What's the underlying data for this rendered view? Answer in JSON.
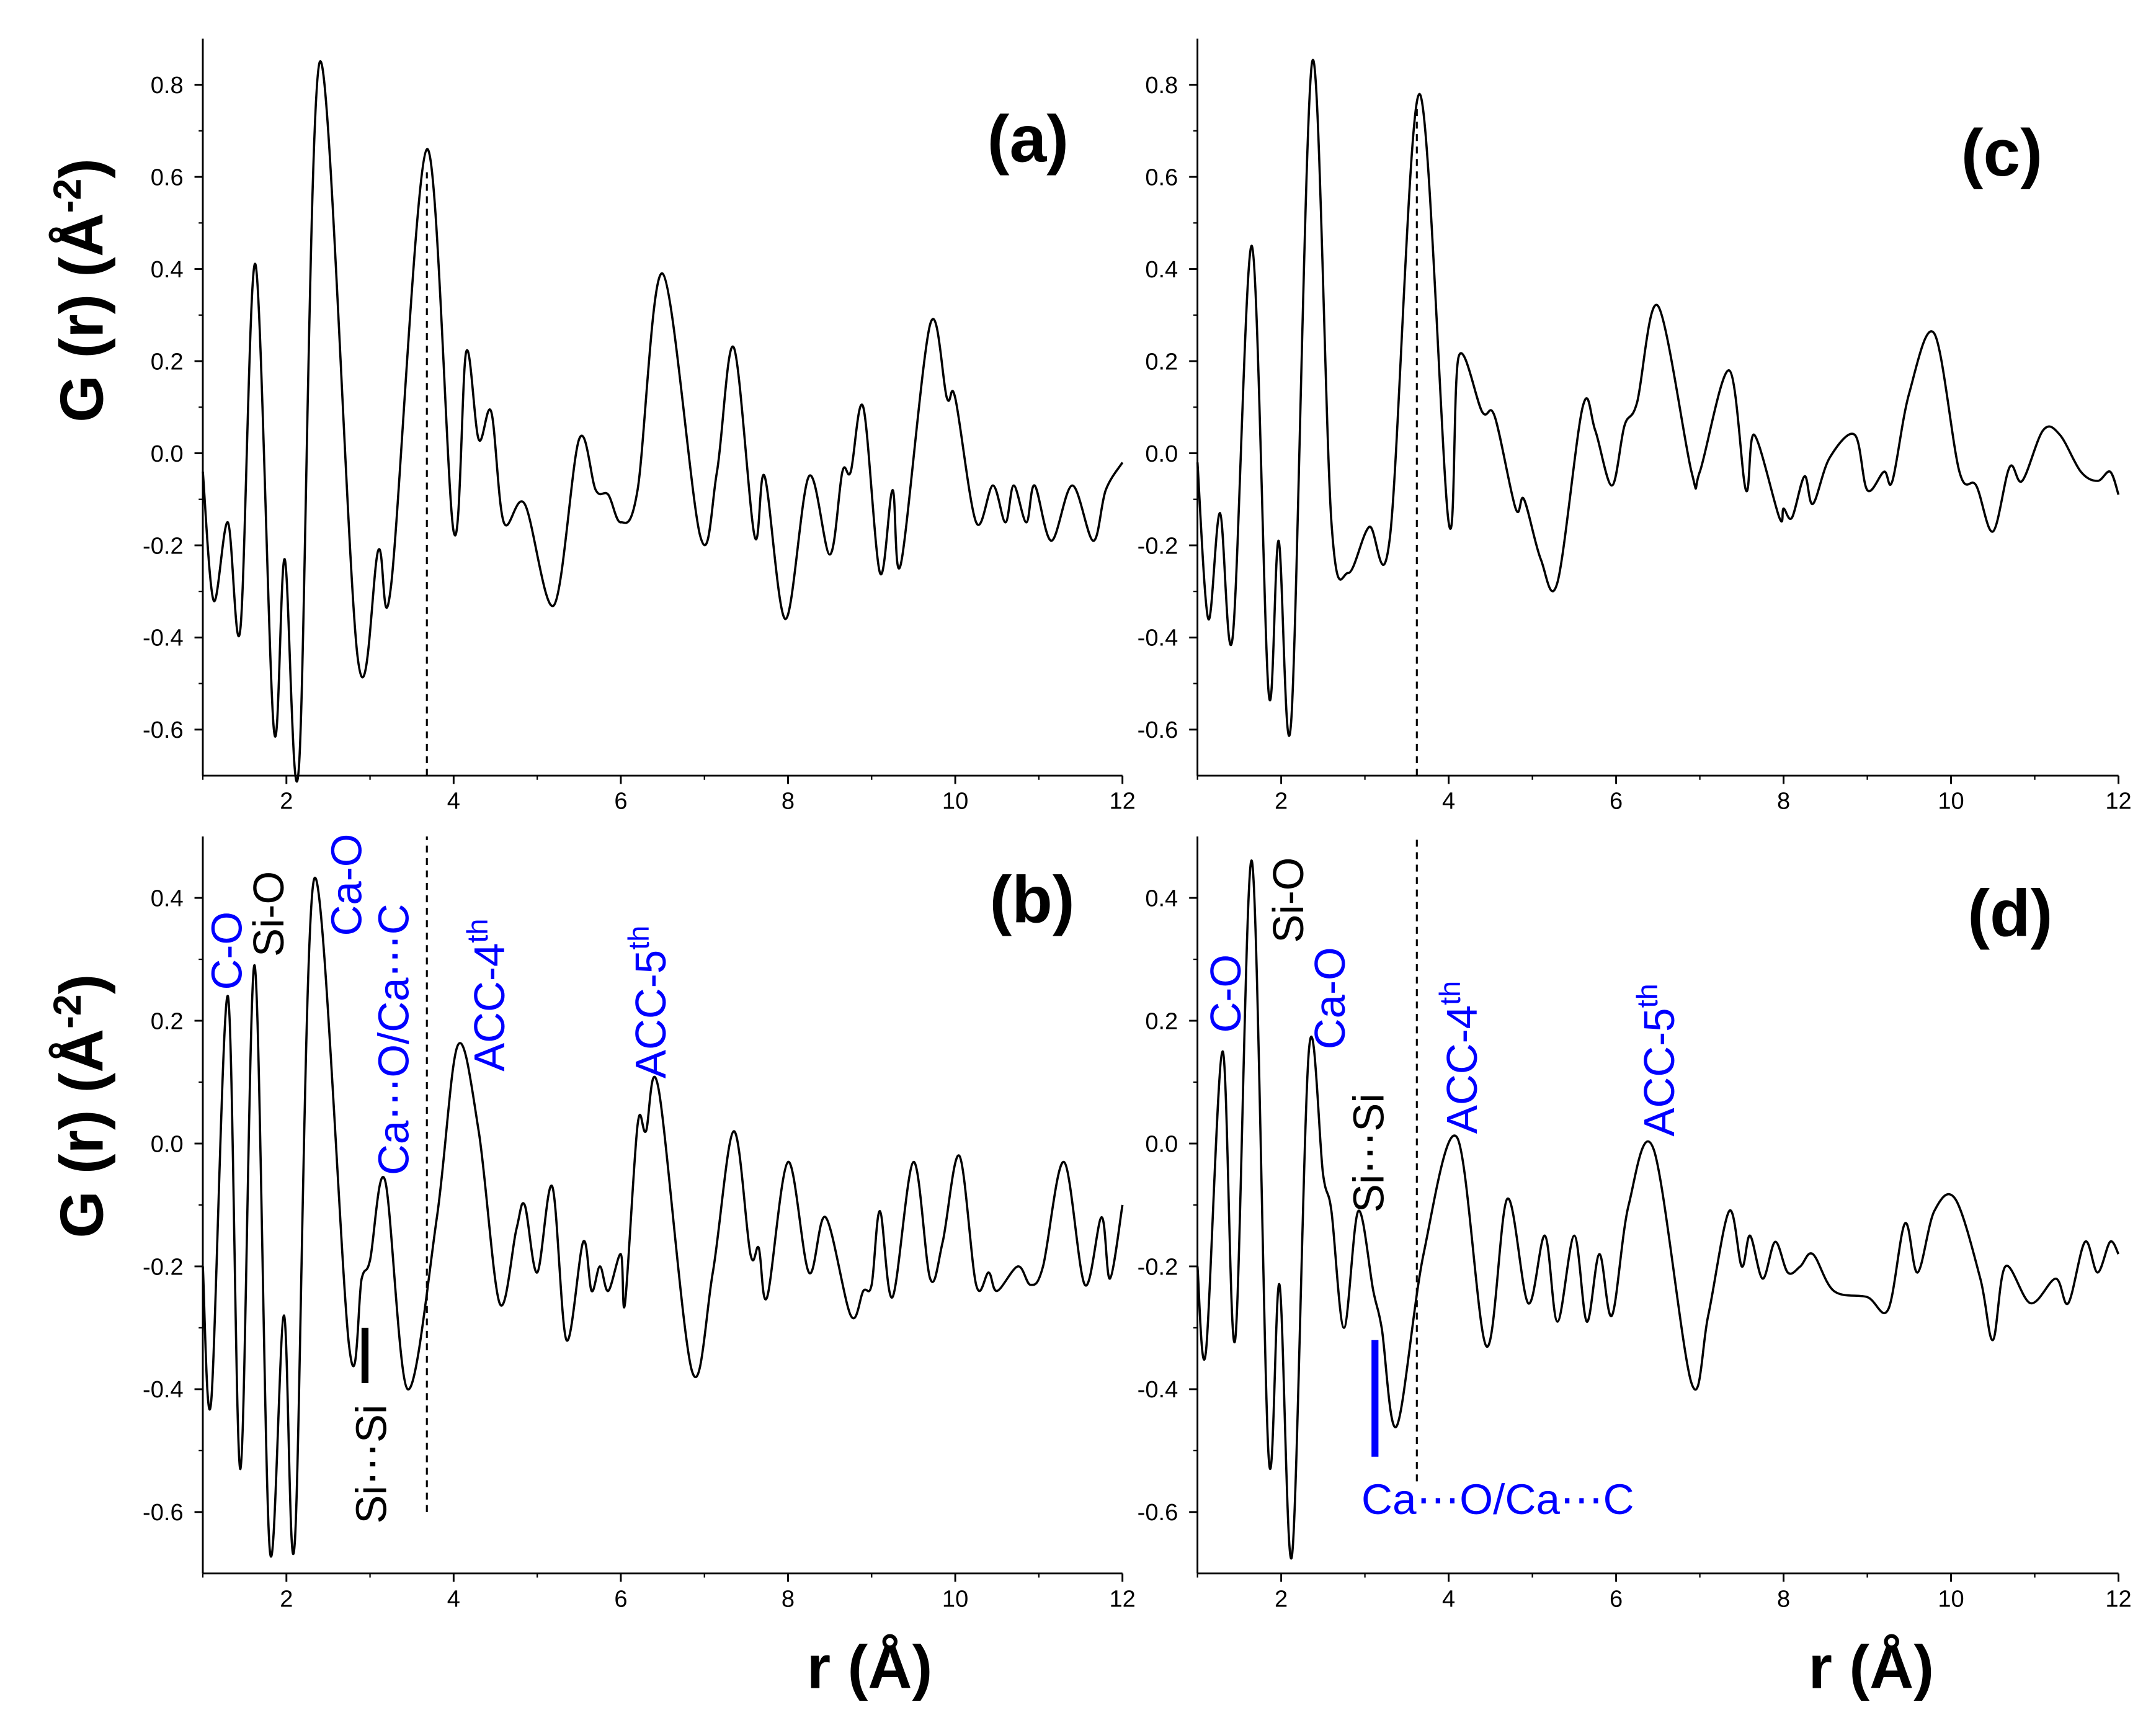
{
  "chart_data": [
    {
      "type": "line",
      "panel_label": "(a)",
      "y_label": "G (r) (Å",
      "y_label_sup": "-2",
      "y_label_end": ")",
      "xlim": [
        1,
        12
      ],
      "xticks": [
        2,
        4,
        6,
        8,
        10,
        12
      ],
      "ylim": [
        -0.7,
        0.9
      ],
      "yticks": [
        -0.6,
        -0.4,
        -0.2,
        {
          "value": 0,
          "label": "0.0"
        },
        0.2,
        0.4,
        0.6,
        0.8
      ],
      "x": [
        1.0,
        1.13,
        1.3,
        1.45,
        1.63,
        1.85,
        1.98,
        2.15,
        2.4,
        2.85,
        3.1,
        3.25,
        3.68,
        4.0,
        4.15,
        4.3,
        4.45,
        4.6,
        4.85,
        5.2,
        5.5,
        5.7,
        5.85,
        6.0,
        6.2,
        6.5,
        6.95,
        7.15,
        7.35,
        7.6,
        7.72,
        7.97,
        8.25,
        8.5,
        8.65,
        8.75,
        8.9,
        9.1,
        9.25,
        9.35,
        9.7,
        9.9,
        10.0,
        10.25,
        10.45,
        10.6,
        10.7,
        10.85,
        10.95,
        11.15,
        11.4,
        11.65,
        11.8,
        12.0
      ],
      "series": [
        {
          "color": "#000000",
          "values": [
            -0.04,
            -0.32,
            -0.15,
            -0.38,
            0.41,
            -0.6,
            -0.23,
            -0.68,
            0.85,
            -0.44,
            -0.21,
            -0.29,
            0.66,
            -0.17,
            0.22,
            0.03,
            0.09,
            -0.15,
            -0.11,
            -0.33,
            0.03,
            -0.08,
            -0.09,
            -0.15,
            -0.08,
            0.39,
            -0.18,
            -0.04,
            0.23,
            -0.18,
            -0.05,
            -0.36,
            -0.05,
            -0.22,
            -0.04,
            -0.04,
            0.1,
            -0.26,
            -0.08,
            -0.24,
            0.28,
            0.12,
            0.12,
            -0.15,
            -0.07,
            -0.15,
            -0.07,
            -0.15,
            -0.07,
            -0.19,
            -0.07,
            -0.19,
            -0.08,
            -0.02
          ]
        }
      ],
      "reference_line": {
        "x": 3.68,
        "y": [
          -0.7,
          0.61
        ]
      }
    },
    {
      "type": "line",
      "panel_label": "(b)",
      "y_label": "G (r) (Å",
      "y_label_sup": "-2",
      "y_label_end": ")",
      "x_label": "r (Å)",
      "xlim": [
        1,
        12
      ],
      "xticks": [
        2,
        4,
        6,
        8,
        10,
        12
      ],
      "ylim": [
        -0.7,
        0.5
      ],
      "yticks": [
        -0.6,
        -0.4,
        -0.2,
        {
          "value": 0,
          "label": "0.0"
        },
        0.2,
        0.4
      ],
      "x": [
        1.0,
        1.1,
        1.3,
        1.45,
        1.62,
        1.8,
        1.97,
        2.1,
        2.33,
        2.75,
        2.9,
        3.0,
        3.18,
        3.45,
        3.8,
        4.05,
        4.3,
        4.55,
        4.75,
        4.85,
        5.0,
        5.18,
        5.35,
        5.55,
        5.65,
        5.75,
        5.85,
        6.0,
        6.05,
        6.2,
        6.3,
        6.45,
        6.85,
        7.1,
        7.35,
        7.55,
        7.65,
        7.75,
        8.0,
        8.25,
        8.45,
        8.75,
        8.9,
        9.0,
        9.1,
        9.25,
        9.5,
        9.7,
        9.85,
        10.05,
        10.25,
        10.4,
        10.5,
        10.75,
        10.9,
        11.05,
        11.3,
        11.55,
        11.75,
        11.85,
        12.0
      ],
      "series": [
        {
          "color": "#000000",
          "values": [
            -0.2,
            -0.42,
            0.24,
            -0.53,
            0.29,
            -0.66,
            -0.28,
            -0.65,
            0.43,
            -0.33,
            -0.22,
            -0.19,
            -0.06,
            -0.4,
            -0.12,
            0.16,
            0.02,
            -0.26,
            -0.14,
            -0.1,
            -0.21,
            -0.07,
            -0.32,
            -0.16,
            -0.24,
            -0.2,
            -0.24,
            -0.18,
            -0.26,
            0.03,
            0.02,
            0.09,
            -0.37,
            -0.21,
            0.02,
            -0.18,
            -0.17,
            -0.25,
            -0.03,
            -0.21,
            -0.12,
            -0.28,
            -0.24,
            -0.23,
            -0.11,
            -0.25,
            -0.03,
            -0.22,
            -0.16,
            -0.02,
            -0.23,
            -0.21,
            -0.24,
            -0.2,
            -0.23,
            -0.2,
            -0.03,
            -0.23,
            -0.12,
            -0.22,
            -0.1
          ]
        }
      ],
      "reference_line": {
        "x": 3.68,
        "y": [
          -0.6,
          0.5
        ]
      },
      "bar_marker": {
        "x": 2.94,
        "y": [
          -0.3,
          -0.39
        ],
        "color": "#000000"
      },
      "annotations": [
        {
          "text": "C-O",
          "color": "#0000ff"
        },
        {
          "text": "Si-O",
          "color": "#000000"
        },
        {
          "text": "Ca-O",
          "color": "#0000ff"
        },
        {
          "text": "Ca⋯O/Ca⋯C",
          "color": "#0000ff"
        },
        {
          "text": "ACC-4",
          "sup": "th",
          "color": "#0000ff"
        },
        {
          "text": "ACC-5",
          "sup": "th",
          "color": "#0000ff"
        },
        {
          "text": "Si⋯Si",
          "color": "#000000"
        }
      ]
    },
    {
      "type": "line",
      "panel_label": "(c)",
      "xlim": [
        1,
        12
      ],
      "xticks": [
        2,
        4,
        6,
        8,
        10,
        12
      ],
      "ylim": [
        -0.7,
        0.9
      ],
      "yticks": [
        -0.6,
        -0.4,
        -0.2,
        {
          "value": 0,
          "label": "0.0"
        },
        0.2,
        0.4,
        0.6,
        0.8
      ],
      "x": [
        1.0,
        1.13,
        1.27,
        1.42,
        1.65,
        1.85,
        1.97,
        2.12,
        2.37,
        2.6,
        2.8,
        3.05,
        3.3,
        3.65,
        4.0,
        4.12,
        4.4,
        4.55,
        4.8,
        4.9,
        5.1,
        5.3,
        5.6,
        5.75,
        5.95,
        6.1,
        6.25,
        6.5,
        6.9,
        7.0,
        7.35,
        7.55,
        7.65,
        7.95,
        8.0,
        8.1,
        8.25,
        8.35,
        8.55,
        8.85,
        9.0,
        9.2,
        9.3,
        9.5,
        9.8,
        10.1,
        10.3,
        10.5,
        10.7,
        10.85,
        11.1,
        11.3,
        11.55,
        11.75,
        11.9,
        12.0
      ],
      "series": [
        {
          "color": "#000000",
          "values": [
            -0.02,
            -0.36,
            -0.13,
            -0.4,
            0.45,
            -0.52,
            -0.19,
            -0.58,
            0.85,
            -0.15,
            -0.26,
            -0.16,
            -0.18,
            0.78,
            -0.15,
            0.21,
            0.09,
            0.08,
            -0.12,
            -0.1,
            -0.23,
            -0.28,
            0.1,
            0.05,
            -0.07,
            0.06,
            0.11,
            0.32,
            -0.04,
            -0.04,
            0.18,
            -0.08,
            0.04,
            -0.14,
            -0.12,
            -0.14,
            -0.05,
            -0.11,
            -0.01,
            0.04,
            -0.08,
            -0.04,
            -0.06,
            0.13,
            0.26,
            -0.04,
            -0.07,
            -0.17,
            -0.03,
            -0.06,
            0.05,
            0.04,
            -0.04,
            -0.06,
            -0.04,
            -0.09
          ]
        }
      ],
      "reference_line": {
        "x": 3.62,
        "y": [
          -0.7,
          0.76
        ]
      }
    },
    {
      "type": "line",
      "panel_label": "(d)",
      "x_label": "r (Å)",
      "xlim": [
        1,
        12
      ],
      "xticks": [
        2,
        4,
        6,
        8,
        10,
        12
      ],
      "ylim": [
        -0.7,
        0.5
      ],
      "yticks": [
        -0.6,
        -0.4,
        -0.2,
        {
          "value": 0,
          "label": "0.0"
        },
        0.2,
        0.4
      ],
      "x": [
        1.0,
        1.1,
        1.3,
        1.45,
        1.65,
        1.85,
        1.98,
        2.13,
        2.33,
        2.5,
        2.6,
        2.75,
        2.92,
        3.1,
        3.2,
        3.38,
        3.7,
        4.1,
        4.45,
        4.7,
        4.95,
        5.15,
        5.3,
        5.5,
        5.65,
        5.8,
        5.95,
        6.15,
        6.45,
        6.9,
        7.1,
        7.35,
        7.5,
        7.6,
        7.75,
        7.9,
        8.05,
        8.2,
        8.35,
        8.6,
        9.0,
        9.25,
        9.45,
        9.6,
        9.8,
        10.05,
        10.35,
        10.5,
        10.65,
        10.95,
        11.25,
        11.4,
        11.6,
        11.75,
        11.9,
        12.0
      ],
      "series": [
        {
          "color": "#000000",
          "values": [
            -0.2,
            -0.34,
            0.15,
            -0.32,
            0.46,
            -0.51,
            -0.23,
            -0.67,
            0.15,
            -0.05,
            -0.11,
            -0.3,
            -0.11,
            -0.24,
            -0.3,
            -0.46,
            -0.18,
            0.01,
            -0.33,
            -0.09,
            -0.26,
            -0.15,
            -0.29,
            -0.15,
            -0.29,
            -0.18,
            -0.28,
            -0.1,
            -0.01,
            -0.39,
            -0.28,
            -0.11,
            -0.2,
            -0.15,
            -0.22,
            -0.16,
            -0.21,
            -0.2,
            -0.18,
            -0.24,
            -0.25,
            -0.27,
            -0.13,
            -0.21,
            -0.11,
            -0.09,
            -0.22,
            -0.32,
            -0.2,
            -0.26,
            -0.22,
            -0.26,
            -0.16,
            -0.21,
            -0.16,
            -0.18
          ]
        }
      ],
      "reference_line": {
        "x": 3.62,
        "y": [
          -0.55,
          0.5
        ]
      },
      "bar_marker": {
        "x": 3.12,
        "y": [
          -0.32,
          -0.51
        ],
        "color": "#0000ff"
      },
      "annotations": [
        {
          "text": "C-O",
          "color": "#0000ff"
        },
        {
          "text": "Si-O",
          "color": "#000000"
        },
        {
          "text": "Ca-O",
          "color": "#0000ff"
        },
        {
          "text": "Si⋯Si",
          "color": "#000000"
        },
        {
          "text": "ACC-4",
          "sup": "th",
          "color": "#0000ff"
        },
        {
          "text": "ACC-5",
          "sup": "th",
          "color": "#0000ff"
        },
        {
          "text": "Ca⋯O/Ca⋯C",
          "color": "#0000ff"
        }
      ]
    }
  ]
}
